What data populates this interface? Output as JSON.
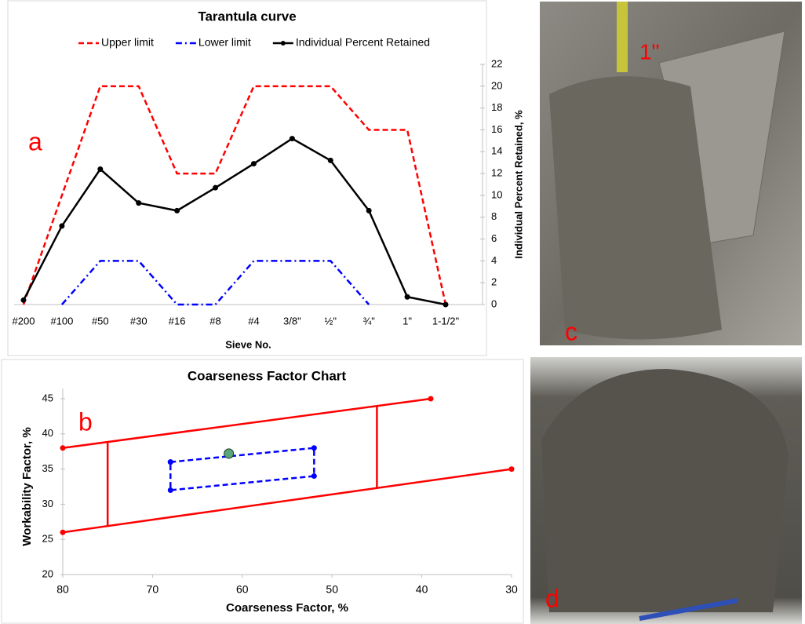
{
  "chart_data": [
    {
      "type": "line",
      "title": "Tarantula curve",
      "panel_label": "a",
      "x_label": "Sieve No.",
      "y_label": "Individual Percent Retained, %",
      "categories": [
        "#200",
        "#100",
        "#50",
        "#30",
        "#16",
        "#8",
        "#4",
        "3/8\"",
        "½\"",
        "¾\"",
        "1\"",
        "1-1/2\""
      ],
      "series": [
        {
          "name": "Upper limit",
          "color": "#ff0000",
          "dash": "dashed",
          "marker": "none",
          "values": [
            0,
            10,
            20,
            20,
            12,
            12,
            20,
            20,
            20,
            16,
            16,
            0
          ]
        },
        {
          "name": "Lower limit",
          "color": "#0000ff",
          "dash": "dashdot",
          "marker": "none",
          "values": [
            null,
            0,
            4,
            4,
            0,
            0,
            4,
            4,
            4,
            0,
            null,
            null
          ]
        },
        {
          "name": "Individual Percent Retained",
          "color": "#000000",
          "dash": "solid",
          "marker": "circle",
          "values": [
            0.4,
            7.2,
            12.4,
            9.3,
            8.6,
            10.7,
            12.9,
            15.2,
            13.2,
            8.6,
            0.7,
            0
          ]
        }
      ],
      "ylim": [
        0,
        22
      ],
      "yticks": [
        0,
        2,
        4,
        6,
        8,
        10,
        12,
        14,
        16,
        18,
        20,
        22
      ],
      "y_axis_side": "right",
      "legend": "top",
      "grid": false
    },
    {
      "type": "line",
      "title": "Coarseness Factor Chart",
      "panel_label": "b",
      "x_label": "Coarseness Factor, %",
      "y_label": "Workability Factor, %",
      "series": [
        {
          "color": "#ff0000",
          "dash": "solid",
          "marker": "circle",
          "x": [
            80,
            39
          ],
          "values": [
            38,
            45
          ]
        },
        {
          "color": "#ff0000",
          "dash": "solid",
          "marker": "circle",
          "x": [
            80,
            30
          ],
          "values": [
            26,
            35
          ]
        },
        {
          "color": "#ff0000",
          "dash": "solid",
          "marker": "none",
          "x": [
            75,
            75
          ],
          "values": [
            26.9,
            38.9
          ]
        },
        {
          "color": "#ff0000",
          "dash": "solid",
          "marker": "none",
          "x": [
            45,
            45
          ],
          "values": [
            32.3,
            44
          ]
        },
        {
          "color": "#0000ff",
          "dash": "dashed",
          "marker": "circle",
          "x": [
            68,
            52,
            52,
            68,
            68
          ],
          "values": [
            36,
            38,
            34,
            32,
            36
          ]
        },
        {
          "color": "#2e7d4f",
          "dash": "none",
          "marker": "circle",
          "x": [
            61.5
          ],
          "values": [
            37.2
          ]
        }
      ],
      "xlim": [
        80,
        30
      ],
      "xticks": [
        80,
        70,
        60,
        50,
        40,
        30
      ],
      "ylim": [
        20,
        45
      ],
      "yticks": [
        20,
        25,
        30,
        35,
        40,
        45
      ],
      "y_axis_side": "left",
      "grid": false
    }
  ],
  "photos": [
    {
      "panel_label": "c",
      "annotation": "1\""
    },
    {
      "panel_label": "d"
    }
  ]
}
